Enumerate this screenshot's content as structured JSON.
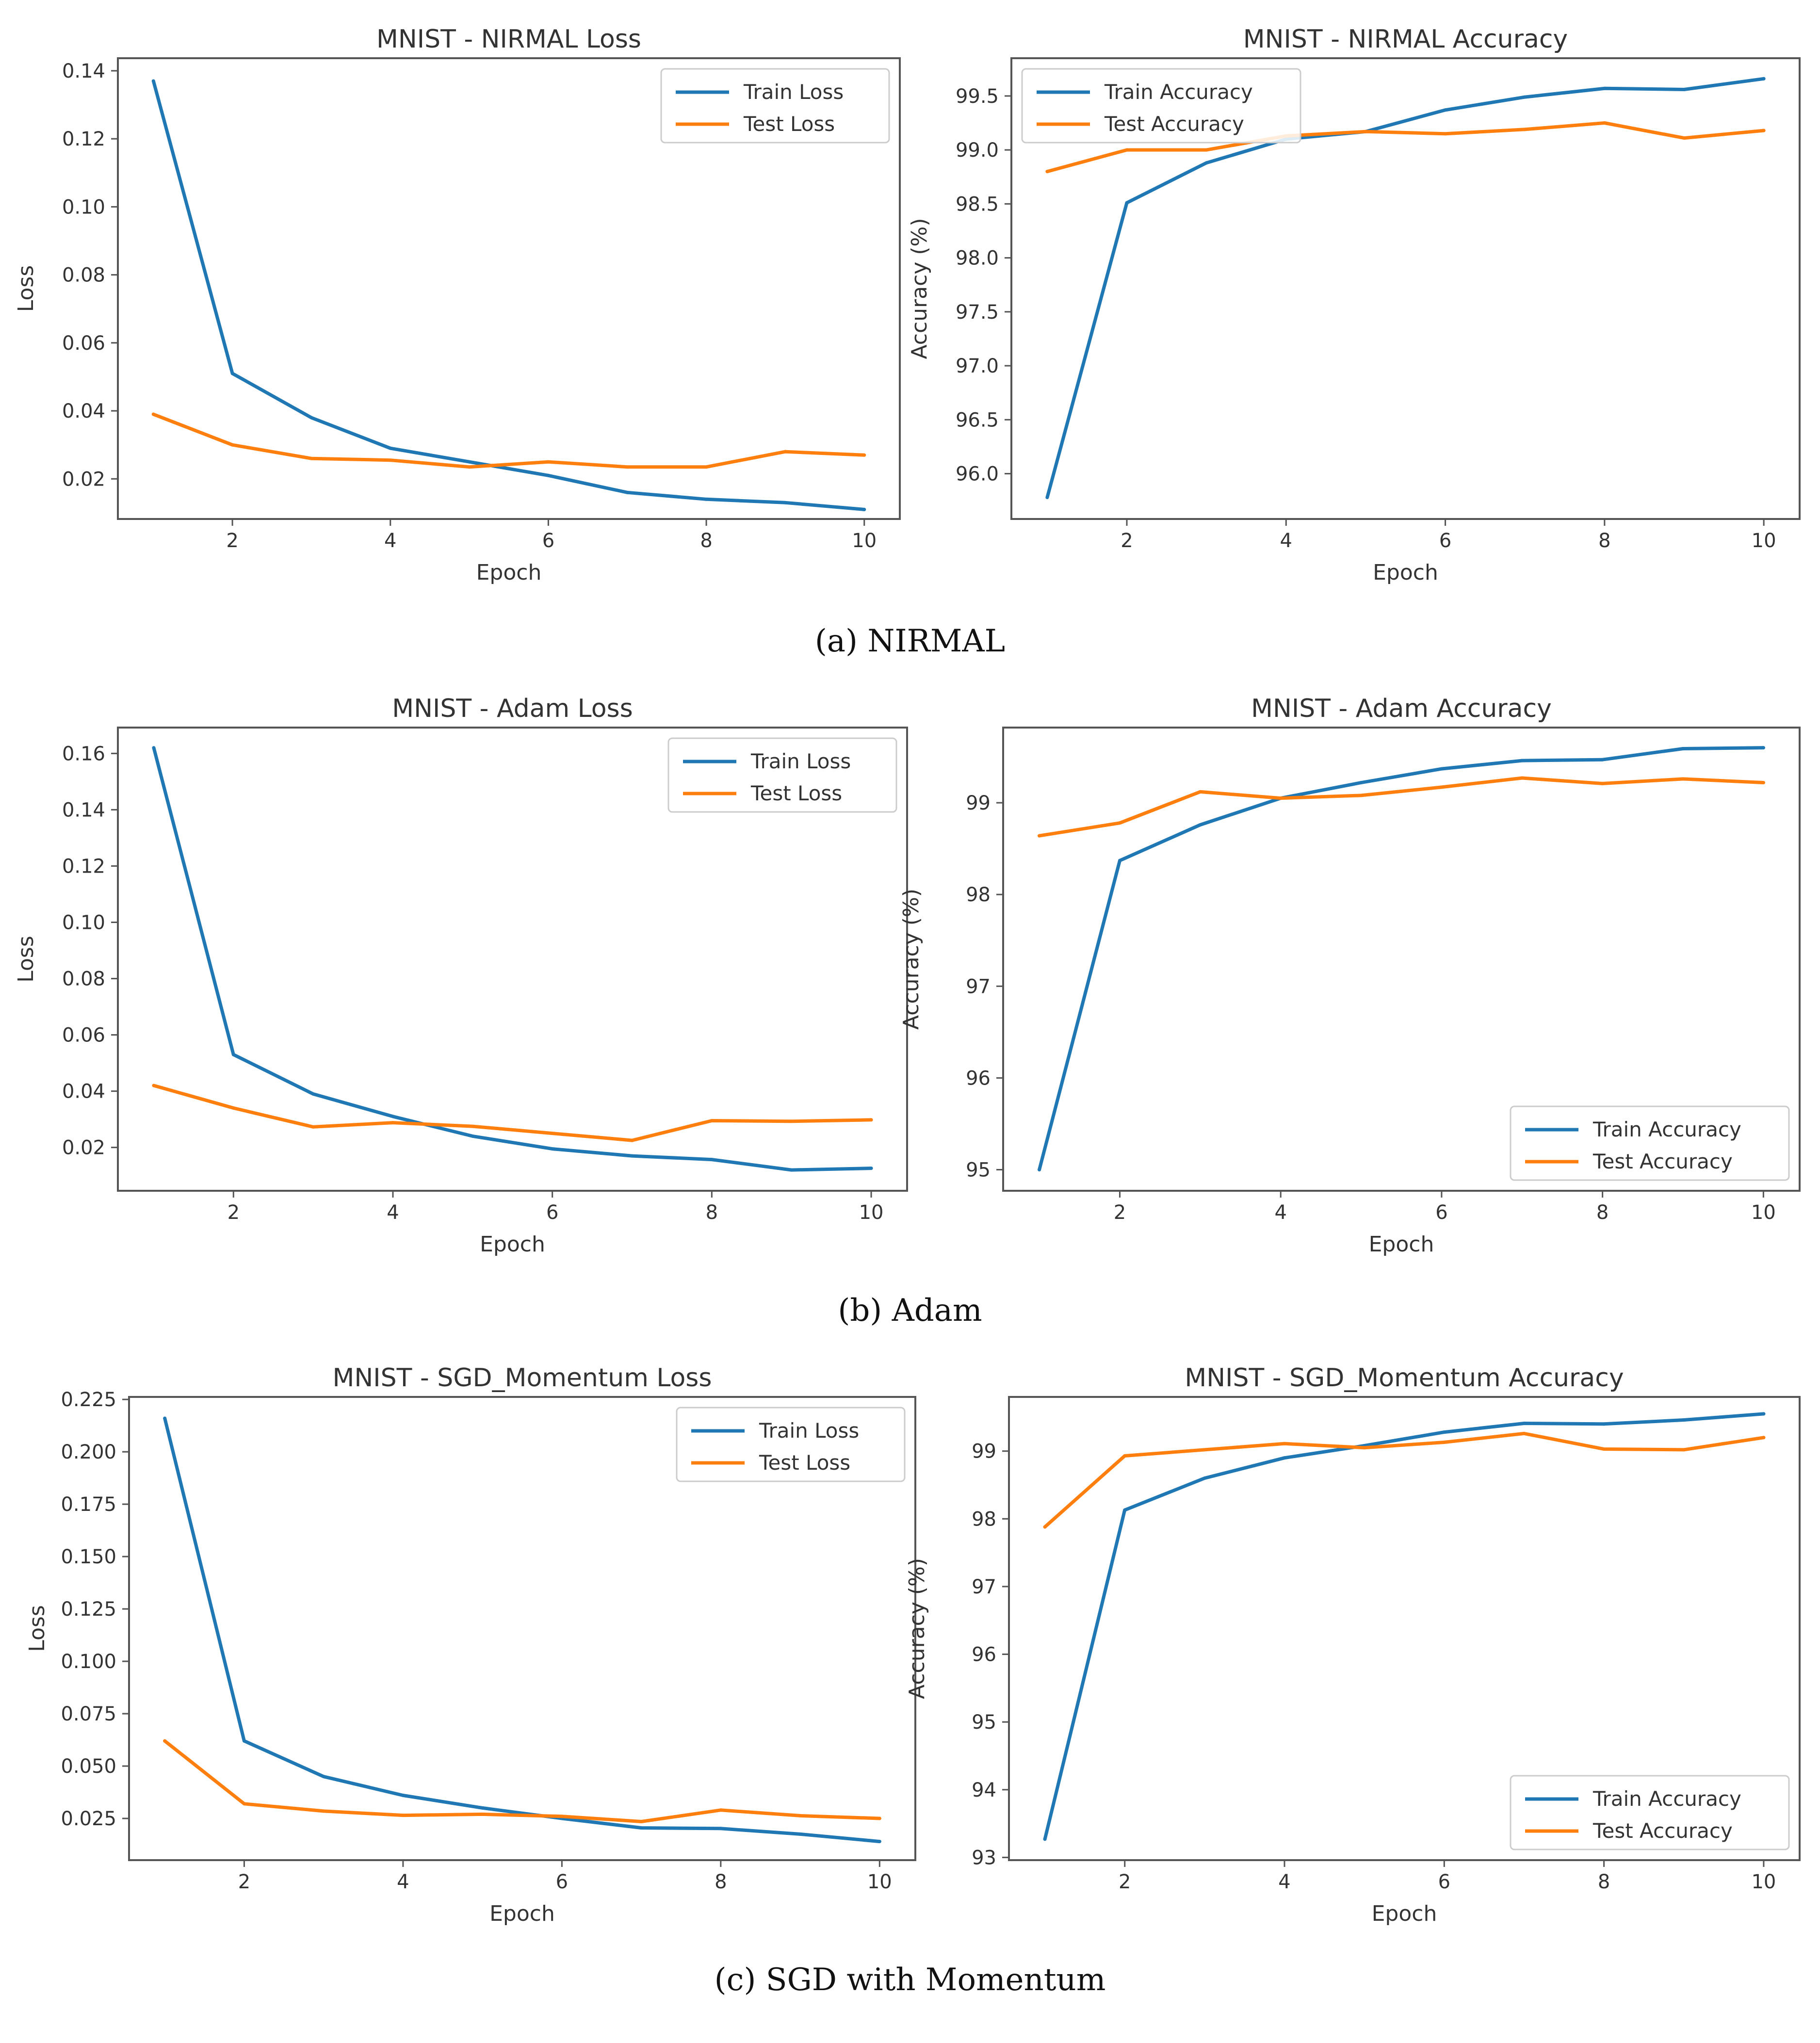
{
  "chart_data": [
    {
      "type": "line",
      "title": "MNIST - NIRMAL Loss",
      "xlabel": "Epoch",
      "ylabel": "Loss",
      "x": [
        1,
        2,
        3,
        4,
        5,
        6,
        7,
        8,
        9,
        10
      ],
      "xlim": [
        0.55,
        10.45
      ],
      "ylim": [
        0.0082,
        0.1437
      ],
      "xticks": [
        2,
        4,
        6,
        8,
        10
      ],
      "yticks": [
        0.02,
        0.04,
        0.06,
        0.08,
        0.1,
        0.12,
        0.14
      ],
      "ytick_labels": [
        "0.02",
        "0.04",
        "0.06",
        "0.08",
        "0.10",
        "0.12",
        "0.14"
      ],
      "grid": false,
      "legend_position": "top-right",
      "series": [
        {
          "name": "Train Loss",
          "color": "#1f77b4",
          "values": [
            0.137,
            0.051,
            0.038,
            0.029,
            0.025,
            0.021,
            0.016,
            0.014,
            0.013,
            0.011
          ]
        },
        {
          "name": "Test Loss",
          "color": "#ff7f0e",
          "values": [
            0.039,
            0.03,
            0.026,
            0.0255,
            0.0235,
            0.025,
            0.0235,
            0.0235,
            0.028,
            0.027
          ]
        }
      ]
    },
    {
      "type": "line",
      "title": "MNIST - NIRMAL Accuracy",
      "xlabel": "Epoch",
      "ylabel": "Accuracy (%)",
      "x": [
        1,
        2,
        3,
        4,
        5,
        6,
        7,
        8,
        9,
        10
      ],
      "xlim": [
        0.55,
        10.45
      ],
      "ylim": [
        95.58,
        99.85
      ],
      "xticks": [
        2,
        4,
        6,
        8,
        10
      ],
      "yticks": [
        96.0,
        96.5,
        97.0,
        97.5,
        98.0,
        98.5,
        99.0,
        99.5
      ],
      "ytick_labels": [
        "96.0",
        "96.5",
        "97.0",
        "97.5",
        "98.0",
        "98.5",
        "99.0",
        "99.5"
      ],
      "grid": false,
      "legend_position": "top-left",
      "series": [
        {
          "name": "Train Accuracy",
          "color": "#1f77b4",
          "values": [
            95.78,
            98.51,
            98.88,
            99.1,
            99.17,
            99.37,
            99.49,
            99.57,
            99.56,
            99.66
          ]
        },
        {
          "name": "Test Accuracy",
          "color": "#ff7f0e",
          "values": [
            98.8,
            99.0,
            99.0,
            99.13,
            99.17,
            99.15,
            99.19,
            99.25,
            99.11,
            99.18
          ]
        }
      ]
    },
    {
      "type": "line",
      "title": "MNIST - Adam Loss",
      "xlabel": "Epoch",
      "ylabel": "Loss",
      "x": [
        1,
        2,
        3,
        4,
        5,
        6,
        7,
        8,
        9,
        10
      ],
      "xlim": [
        0.55,
        10.45
      ],
      "ylim": [
        0.0046,
        0.1692
      ],
      "xticks": [
        2,
        4,
        6,
        8,
        10
      ],
      "yticks": [
        0.02,
        0.04,
        0.06,
        0.08,
        0.1,
        0.12,
        0.14,
        0.16
      ],
      "ytick_labels": [
        "0.02",
        "0.04",
        "0.06",
        "0.08",
        "0.10",
        "0.12",
        "0.14",
        "0.16"
      ],
      "grid": false,
      "legend_position": "top-right",
      "series": [
        {
          "name": "Train Loss",
          "color": "#1f77b4",
          "values": [
            0.162,
            0.053,
            0.039,
            0.031,
            0.024,
            0.0195,
            0.017,
            0.0157,
            0.012,
            0.0126
          ]
        },
        {
          "name": "Test Loss",
          "color": "#ff7f0e",
          "values": [
            0.042,
            0.034,
            0.0273,
            0.0288,
            0.0275,
            0.025,
            0.0225,
            0.0295,
            0.0293,
            0.0298
          ]
        }
      ]
    },
    {
      "type": "line",
      "title": "MNIST - Adam Accuracy",
      "xlabel": "Epoch",
      "ylabel": "Accuracy (%)",
      "x": [
        1,
        2,
        3,
        4,
        5,
        6,
        7,
        8,
        9,
        10
      ],
      "xlim": [
        0.55,
        10.45
      ],
      "ylim": [
        94.77,
        99.82
      ],
      "xticks": [
        2,
        4,
        6,
        8,
        10
      ],
      "yticks": [
        95,
        96,
        97,
        98,
        99
      ],
      "ytick_labels": [
        "95",
        "96",
        "97",
        "98",
        "99"
      ],
      "grid": false,
      "legend_position": "bottom-right",
      "series": [
        {
          "name": "Train Accuracy",
          "color": "#1f77b4",
          "values": [
            95.0,
            98.37,
            98.76,
            99.05,
            99.22,
            99.37,
            99.46,
            99.47,
            99.59,
            99.6
          ]
        },
        {
          "name": "Test Accuracy",
          "color": "#ff7f0e",
          "values": [
            98.64,
            98.78,
            99.12,
            99.05,
            99.08,
            99.17,
            99.27,
            99.21,
            99.26,
            99.22
          ]
        }
      ]
    },
    {
      "type": "line",
      "title": "MNIST - SGD_Momentum Loss",
      "xlabel": "Epoch",
      "ylabel": "Loss",
      "x": [
        1,
        2,
        3,
        4,
        5,
        6,
        7,
        8,
        9,
        10
      ],
      "xlim": [
        0.55,
        10.45
      ],
      "ylim": [
        0.0051,
        0.2262
      ],
      "xticks": [
        2,
        4,
        6,
        8,
        10
      ],
      "yticks": [
        0.025,
        0.05,
        0.075,
        0.1,
        0.125,
        0.15,
        0.175,
        0.2,
        0.225
      ],
      "ytick_labels": [
        "0.025",
        "0.050",
        "0.075",
        "0.100",
        "0.125",
        "0.150",
        "0.175",
        "0.200",
        "0.225"
      ],
      "grid": false,
      "legend_position": "top-right",
      "series": [
        {
          "name": "Train Loss",
          "color": "#1f77b4",
          "values": [
            0.216,
            0.062,
            0.045,
            0.036,
            0.03,
            0.025,
            0.0205,
            0.0202,
            0.0175,
            0.014
          ]
        },
        {
          "name": "Test Loss",
          "color": "#ff7f0e",
          "values": [
            0.062,
            0.032,
            0.0285,
            0.0265,
            0.027,
            0.026,
            0.0235,
            0.029,
            0.0263,
            0.025
          ]
        }
      ]
    },
    {
      "type": "line",
      "title": "MNIST - SGD_Momentum Accuracy",
      "xlabel": "Epoch",
      "ylabel": "Accuracy (%)",
      "x": [
        1,
        2,
        3,
        4,
        5,
        6,
        7,
        8,
        9,
        10
      ],
      "xlim": [
        0.55,
        10.45
      ],
      "ylim": [
        92.96,
        99.8
      ],
      "xticks": [
        2,
        4,
        6,
        8,
        10
      ],
      "yticks": [
        93,
        94,
        95,
        96,
        97,
        98,
        99
      ],
      "ytick_labels": [
        "93",
        "94",
        "95",
        "96",
        "97",
        "98",
        "99"
      ],
      "grid": false,
      "legend_position": "bottom-right",
      "series": [
        {
          "name": "Train Accuracy",
          "color": "#1f77b4",
          "values": [
            93.27,
            98.13,
            98.6,
            98.9,
            99.08,
            99.28,
            99.41,
            99.4,
            99.46,
            99.55
          ]
        },
        {
          "name": "Test Accuracy",
          "color": "#ff7f0e",
          "values": [
            97.88,
            98.93,
            99.02,
            99.11,
            99.05,
            99.13,
            99.26,
            99.03,
            99.02,
            99.2
          ]
        }
      ]
    }
  ],
  "captions": {
    "a": "(a) NIRMAL",
    "b": "(b) Adam",
    "c": "(c) SGD with Momentum"
  }
}
